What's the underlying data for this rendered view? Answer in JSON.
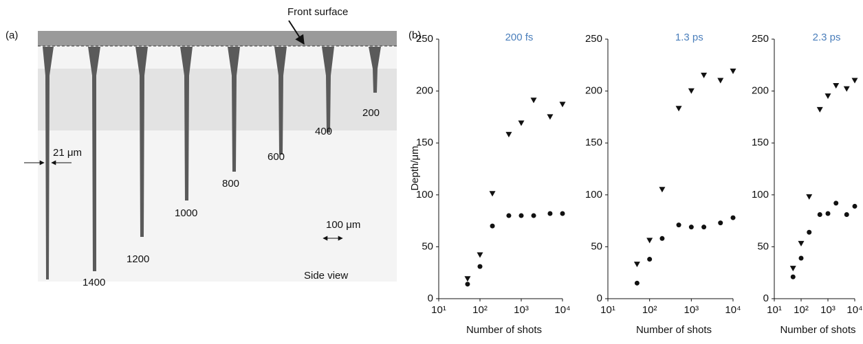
{
  "panel_a": {
    "label": "(a)",
    "front_surface": "Front surface",
    "width_label": "21 μm",
    "scale_label": "100 μm",
    "view_label": "Side view",
    "depth_labels": [
      "1400",
      "1200",
      "1000",
      "800",
      "600",
      "400",
      "200"
    ]
  },
  "panel_b_label": "(b)",
  "chart_data": [
    {
      "type": "scatter",
      "title": "200 fs",
      "ylabel": "Depth/μm",
      "xlabel": "Number of shots",
      "xscale": "log",
      "xlim": [
        10,
        10000
      ],
      "ylim": [
        0,
        250
      ],
      "xticks": [
        {
          "value": 10,
          "label": "10¹"
        },
        {
          "value": 100,
          "label": "10²"
        },
        {
          "value": 1000,
          "label": "10³"
        },
        {
          "value": 10000,
          "label": "10⁴"
        }
      ],
      "yticks": [
        0,
        50,
        100,
        150,
        200,
        250
      ],
      "series": [
        {
          "marker": "triangle-down",
          "color": "#111111",
          "x": [
            50,
            100,
            200,
            500,
            1000,
            2000,
            5000,
            10000
          ],
          "values": [
            19,
            42,
            101,
            158,
            169,
            191,
            175,
            187
          ]
        },
        {
          "marker": "circle",
          "color": "#111111",
          "x": [
            50,
            100,
            200,
            500,
            1000,
            2000,
            5000,
            10000
          ],
          "values": [
            14,
            31,
            70,
            80,
            80,
            80,
            82,
            82
          ]
        }
      ]
    },
    {
      "type": "scatter",
      "title": "1.3 ps",
      "xlabel": "Number of shots",
      "xscale": "log",
      "xlim": [
        10,
        10000
      ],
      "ylim": [
        0,
        250
      ],
      "xticks": [
        {
          "value": 10,
          "label": "10¹"
        },
        {
          "value": 100,
          "label": "10²"
        },
        {
          "value": 1000,
          "label": "10³"
        },
        {
          "value": 10000,
          "label": "10⁴"
        }
      ],
      "yticks": [
        0,
        50,
        100,
        150,
        200,
        250
      ],
      "series": [
        {
          "marker": "triangle-down",
          "color": "#111111",
          "x": [
            50,
            100,
            200,
            500,
            1000,
            2000,
            5000,
            10000
          ],
          "values": [
            33,
            56,
            105,
            183,
            200,
            215,
            210,
            219
          ]
        },
        {
          "marker": "circle",
          "color": "#111111",
          "x": [
            50,
            100,
            200,
            500,
            1000,
            2000,
            5000,
            10000
          ],
          "values": [
            15,
            38,
            58,
            71,
            69,
            69,
            73,
            78
          ]
        }
      ]
    },
    {
      "type": "scatter",
      "title": "2.3 ps",
      "xlabel": "Number of shots",
      "xscale": "log",
      "xlim": [
        10,
        10000
      ],
      "ylim": [
        0,
        250
      ],
      "xticks": [
        {
          "value": 10,
          "label": "10¹"
        },
        {
          "value": 100,
          "label": "10²"
        },
        {
          "value": 1000,
          "label": "10³"
        },
        {
          "value": 10000,
          "label": "10⁴"
        }
      ],
      "yticks": [
        0,
        50,
        100,
        150,
        200,
        250
      ],
      "series": [
        {
          "marker": "triangle-down",
          "color": "#111111",
          "x": [
            50,
            100,
            200,
            500,
            1000,
            2000,
            5000,
            10000
          ],
          "values": [
            29,
            53,
            98,
            182,
            195,
            205,
            202,
            210
          ]
        },
        {
          "marker": "circle",
          "color": "#111111",
          "x": [
            50,
            100,
            200,
            500,
            1000,
            2000,
            5000,
            10000
          ],
          "values": [
            21,
            39,
            64,
            81,
            82,
            92,
            81,
            89
          ]
        }
      ]
    }
  ]
}
